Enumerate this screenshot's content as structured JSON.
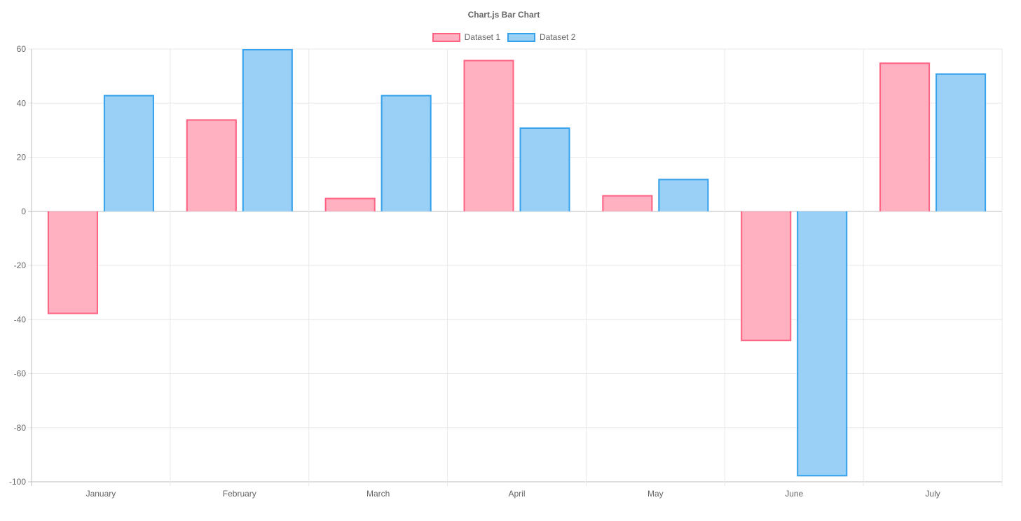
{
  "page": {
    "background_color": "#ffffff",
    "text_color": "#666666"
  },
  "chart_data": {
    "type": "bar",
    "title": "Chart.js Bar Chart",
    "categories": [
      "January",
      "February",
      "March",
      "April",
      "May",
      "June",
      "July"
    ],
    "series": [
      {
        "name": "Dataset 1",
        "values": [
          -38,
          34,
          5,
          56,
          6,
          -48,
          55
        ],
        "fill_color": "#ffb1c1",
        "border_color": "#ff6384"
      },
      {
        "name": "Dataset 2",
        "values": [
          43,
          60,
          43,
          31,
          12,
          -98,
          51
        ],
        "fill_color": "#9ad0f5",
        "border_color": "#36a2eb"
      }
    ],
    "xlabel": "",
    "ylabel": "",
    "ylim": [
      -100,
      60
    ],
    "ytick_step": 20,
    "yticks": [
      60,
      40,
      20,
      0,
      -20,
      -40,
      -60,
      -80,
      -100
    ],
    "grid": true,
    "legend_position": "top",
    "grid_color": "#e9e9e9",
    "axis_line_color": "#bcbcbc",
    "tick_label_color": "#666666"
  }
}
